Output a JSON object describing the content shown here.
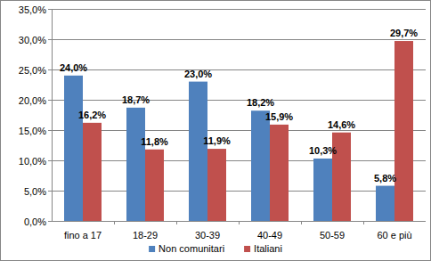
{
  "chart_data": {
    "type": "bar",
    "categories": [
      "fino a 17",
      "18-29",
      "30-39",
      "40-49",
      "50-59",
      "60 e più"
    ],
    "series": [
      {
        "name": "Non comunitari",
        "color": "#4f81bd",
        "values": [
          24.0,
          18.7,
          23.0,
          18.2,
          10.3,
          5.8
        ],
        "value_labels": [
          "24,0%",
          "18,7%",
          "23,0%",
          "18,2%",
          "10,3%",
          "5,8%"
        ]
      },
      {
        "name": "Italiani",
        "color": "#c0504d",
        "values": [
          16.2,
          11.8,
          11.9,
          15.9,
          14.6,
          29.7
        ],
        "value_labels": [
          "16,2%",
          "11,8%",
          "11,9%",
          "15,9%",
          "14,6%",
          "29,7%"
        ]
      }
    ],
    "ylim": [
      0,
      35
    ],
    "yticks": [
      {
        "value": 0,
        "label": "0,0%"
      },
      {
        "value": 5,
        "label": "5,0%"
      },
      {
        "value": 10,
        "label": "10,0%"
      },
      {
        "value": 15,
        "label": "15,0%"
      },
      {
        "value": 20,
        "label": "20,0%"
      },
      {
        "value": 25,
        "label": "25,0%"
      },
      {
        "value": 30,
        "label": "30,0%"
      },
      {
        "value": 35,
        "label": "35,0%"
      }
    ],
    "grid": true,
    "legend": "bottom",
    "data_labels": true
  }
}
